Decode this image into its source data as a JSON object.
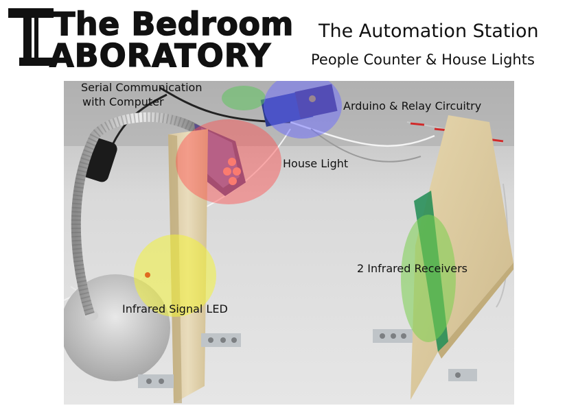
{
  "logo": {
    "line1": "The Bedroom",
    "line2": "ABORATORY",
    "mark": "T"
  },
  "header": {
    "title": "The Automation Station",
    "subtitle": "People Counter & House Lights"
  },
  "photo": {
    "annotations": {
      "serial_line1": "Serial Communication",
      "serial_line2": "with Computer",
      "arduino": "Arduino & Relay Circuitry",
      "house_light": "House Light",
      "receivers": "2 Infrared Receivers",
      "led": "Infrared Signal LED"
    },
    "highlight_colors": {
      "serial": "#5fc45f",
      "arduino": "#6b6bff",
      "house_light": "#ff4d4d",
      "receivers": "#7ad04f",
      "led": "#f2f23a"
    }
  }
}
